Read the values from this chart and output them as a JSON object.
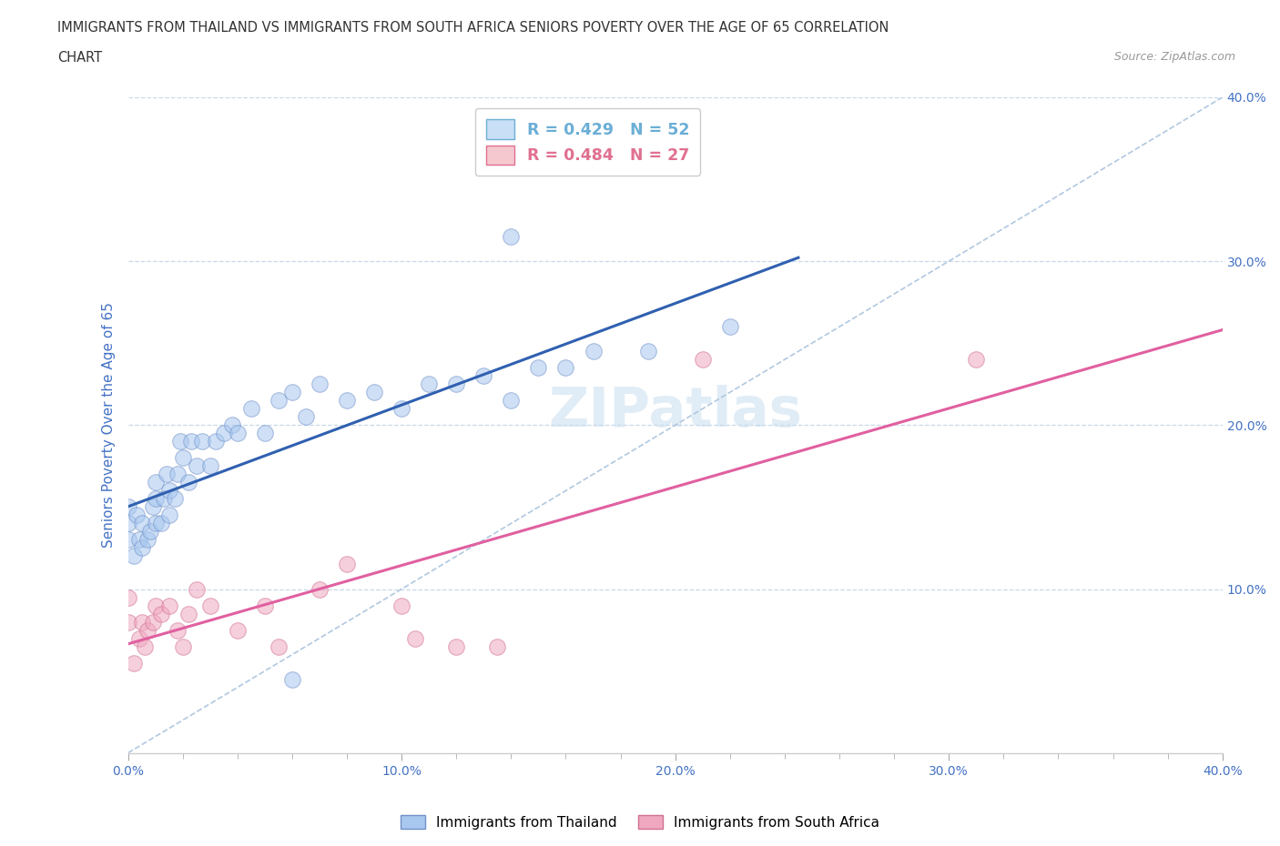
{
  "title_line1": "IMMIGRANTS FROM THAILAND VS IMMIGRANTS FROM SOUTH AFRICA SENIORS POVERTY OVER THE AGE OF 65 CORRELATION",
  "title_line2": "CHART",
  "source_text": "Source: ZipAtlas.com",
  "ylabel": "Seniors Poverty Over the Age of 65",
  "xlim": [
    0.0,
    0.4
  ],
  "ylim": [
    0.0,
    0.4
  ],
  "xtick_labels": [
    "0.0%",
    "",
    "",
    "",
    "",
    "10.0%",
    "",
    "",
    "",
    "",
    "20.0%",
    "",
    "",
    "",
    "",
    "30.0%",
    "",
    "",
    "",
    "",
    "40.0%"
  ],
  "xtick_vals": [
    0.0,
    0.02,
    0.04,
    0.06,
    0.08,
    0.1,
    0.12,
    0.14,
    0.16,
    0.18,
    0.2,
    0.22,
    0.24,
    0.26,
    0.28,
    0.3,
    0.32,
    0.34,
    0.36,
    0.38,
    0.4
  ],
  "ytick_vals": [
    0.1,
    0.2,
    0.3,
    0.4
  ],
  "right_ytick_labels": [
    "10.0%",
    "20.0%",
    "30.0%",
    "40.0%"
  ],
  "legend_label1": "R = 0.429   N = 52",
  "legend_label2": "R = 0.484   N = 27",
  "legend_facecolor1": "#c8dff5",
  "legend_facecolor2": "#f5c8d0",
  "legend_edgecolor1": "#6baed6",
  "legend_edgecolor2": "#e07090",
  "line_color1": "#3060b0",
  "line_color2": "#e060a0",
  "dashed_line_color": "#b0c8e0",
  "watermark": "ZIPatlas",
  "background_color": "#ffffff",
  "grid_color": "#c8d8e8",
  "scatter_facecolor1": "#a8c8f0",
  "scatter_facecolor2": "#f0a8c0",
  "scatter_edgecolor1": "#7090c8",
  "scatter_edgecolor2": "#d07090",
  "scatter_alpha": 0.55,
  "scatter_size": 160,
  "thailand_x": [
    0.0,
    0.0,
    0.0,
    0.002,
    0.003,
    0.004,
    0.005,
    0.005,
    0.007,
    0.008,
    0.009,
    0.01,
    0.01,
    0.01,
    0.012,
    0.013,
    0.014,
    0.015,
    0.015,
    0.017,
    0.018,
    0.019,
    0.02,
    0.022,
    0.023,
    0.025,
    0.027,
    0.03,
    0.032,
    0.035,
    0.038,
    0.04,
    0.045,
    0.05,
    0.055,
    0.06,
    0.065,
    0.07,
    0.08,
    0.09,
    0.1,
    0.11,
    0.12,
    0.13,
    0.14,
    0.15,
    0.16,
    0.17,
    0.19,
    0.22,
    0.14,
    0.06
  ],
  "thailand_y": [
    0.13,
    0.14,
    0.15,
    0.12,
    0.145,
    0.13,
    0.125,
    0.14,
    0.13,
    0.135,
    0.15,
    0.14,
    0.155,
    0.165,
    0.14,
    0.155,
    0.17,
    0.145,
    0.16,
    0.155,
    0.17,
    0.19,
    0.18,
    0.165,
    0.19,
    0.175,
    0.19,
    0.175,
    0.19,
    0.195,
    0.2,
    0.195,
    0.21,
    0.195,
    0.215,
    0.22,
    0.205,
    0.225,
    0.215,
    0.22,
    0.21,
    0.225,
    0.225,
    0.23,
    0.215,
    0.235,
    0.235,
    0.245,
    0.245,
    0.26,
    0.315,
    0.045
  ],
  "sa_x": [
    0.0,
    0.0,
    0.002,
    0.004,
    0.005,
    0.006,
    0.007,
    0.009,
    0.01,
    0.012,
    0.015,
    0.018,
    0.02,
    0.022,
    0.025,
    0.03,
    0.04,
    0.05,
    0.055,
    0.07,
    0.08,
    0.1,
    0.105,
    0.12,
    0.135,
    0.21,
    0.31
  ],
  "sa_y": [
    0.08,
    0.095,
    0.055,
    0.07,
    0.08,
    0.065,
    0.075,
    0.08,
    0.09,
    0.085,
    0.09,
    0.075,
    0.065,
    0.085,
    0.1,
    0.09,
    0.075,
    0.09,
    0.065,
    0.1,
    0.115,
    0.09,
    0.07,
    0.065,
    0.065,
    0.24,
    0.24
  ],
  "blue_line_x0": 0.0,
  "blue_line_y0": 0.13,
  "blue_line_x1": 0.24,
  "blue_line_y1": 0.255,
  "pink_line_x0": 0.0,
  "pink_line_y0": 0.075,
  "pink_line_x1": 0.4,
  "pink_line_y1": 0.265
}
